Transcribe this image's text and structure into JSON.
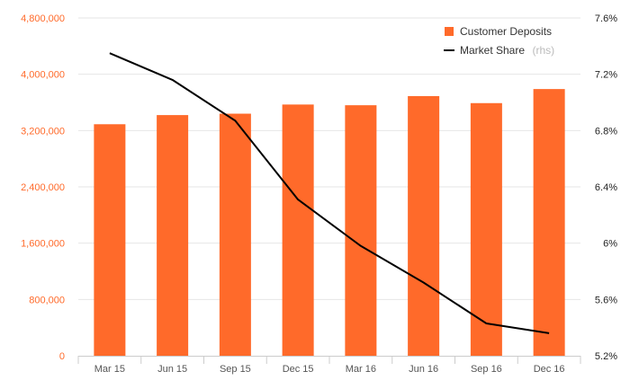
{
  "chart_data": {
    "type": "bar",
    "categories": [
      "Mar 15",
      "Jun 15",
      "Sep 15",
      "Dec 15",
      "Mar 16",
      "Jun 16",
      "Sep 16",
      "Dec 16"
    ],
    "series": [
      {
        "name": "Customer Deposits",
        "type": "bar",
        "axis": "left",
        "color": "#ff6a2a",
        "values": [
          3290000,
          3420000,
          3440000,
          3570000,
          3560000,
          3690000,
          3590000,
          3790000
        ]
      },
      {
        "name": "Market Share",
        "name_suffix": "(rhs)",
        "type": "line",
        "axis": "right",
        "color": "#000000",
        "values": [
          7.35,
          7.16,
          6.87,
          6.31,
          5.98,
          5.72,
          5.43,
          5.36
        ]
      }
    ],
    "y_left": {
      "min": 0,
      "max": 4800000,
      "ticks": [
        0,
        800000,
        1600000,
        2400000,
        3200000,
        4000000,
        4800000
      ],
      "tick_labels": [
        "0",
        "800,000",
        "1,600,000",
        "2,400,000",
        "3,200,000",
        "4,000,000",
        "4,800,000"
      ],
      "label_color": "#ff6a2a"
    },
    "y_right": {
      "min": 5.2,
      "max": 7.6,
      "ticks": [
        5.2,
        5.6,
        6.0,
        6.4,
        6.8,
        7.2,
        7.6
      ],
      "tick_labels": [
        "5.2%",
        "5.6%",
        "6%",
        "6.4%",
        "6.8%",
        "7.2%",
        "7.6%"
      ]
    },
    "grid": true,
    "legend_position": "top-right"
  }
}
